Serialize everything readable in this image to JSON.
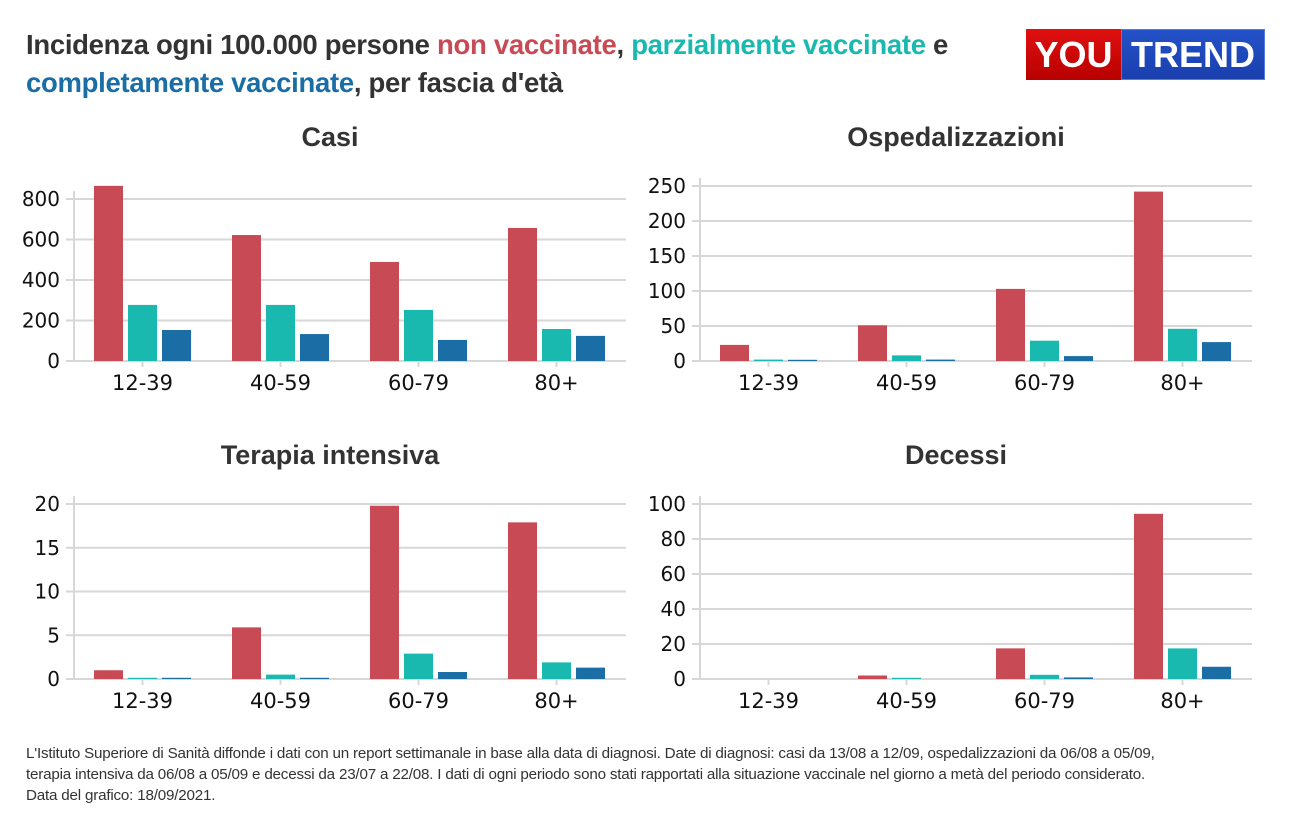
{
  "header": {
    "title_part1": "Incidenza ogni 100.000 persone ",
    "title_non": "non vaccinate",
    "title_sep1": ", ",
    "title_parz": "parzialmente vaccinate",
    "title_sep2": " e ",
    "title_comp": "completamente vaccinate",
    "title_part2": ", per fascia d'età",
    "logo_you": "YOU",
    "logo_trend": "TREND"
  },
  "colors": {
    "non_vaccinate": "#c84a55",
    "parzialmente_vaccinate": "#1ab9af",
    "completamente_vaccinate": "#1a6ea5",
    "grid": "#d7d7d7"
  },
  "chart_data": [
    {
      "type": "bar",
      "title": "Casi",
      "categories": [
        "12-39",
        "40-59",
        "60-79",
        "80+"
      ],
      "series": [
        {
          "name": "non vaccinate",
          "values": [
            865,
            622,
            489,
            657
          ]
        },
        {
          "name": "parzialmente vaccinate",
          "values": [
            277,
            277,
            252,
            158
          ]
        },
        {
          "name": "completamente vaccinate",
          "values": [
            153,
            133,
            104,
            124
          ]
        }
      ],
      "yticks": [
        0,
        200,
        400,
        600,
        800
      ],
      "ylim": [
        0,
        900
      ],
      "grid": true,
      "xlabel": "",
      "ylabel": ""
    },
    {
      "type": "bar",
      "title": "Ospedalizzazioni",
      "categories": [
        "12-39",
        "40-59",
        "60-79",
        "80+"
      ],
      "series": [
        {
          "name": "non vaccinate",
          "values": [
            23,
            51,
            103,
            242
          ]
        },
        {
          "name": "parzialmente vaccinate",
          "values": [
            2,
            8,
            29,
            46
          ]
        },
        {
          "name": "completamente vaccinate",
          "values": [
            1,
            2,
            7,
            27
          ]
        }
      ],
      "yticks": [
        0,
        50,
        100,
        150,
        200,
        250
      ],
      "ylim": [
        0,
        260
      ],
      "grid": true,
      "xlabel": "",
      "ylabel": ""
    },
    {
      "type": "bar",
      "title": "Terapia intensiva",
      "categories": [
        "12-39",
        "40-59",
        "60-79",
        "80+"
      ],
      "series": [
        {
          "name": "non vaccinate",
          "values": [
            1.0,
            5.9,
            19.8,
            17.9
          ]
        },
        {
          "name": "parzialmente vaccinate",
          "values": [
            0.1,
            0.5,
            2.9,
            1.9
          ]
        },
        {
          "name": "completamente vaccinate",
          "values": [
            0.1,
            0.1,
            0.8,
            1.3
          ]
        }
      ],
      "yticks": [
        0,
        5,
        10,
        15,
        20
      ],
      "ylim": [
        0,
        20
      ],
      "grid": true,
      "xlabel": "",
      "ylabel": ""
    },
    {
      "type": "bar",
      "title": "Decessi",
      "categories": [
        "12-39",
        "40-59",
        "60-79",
        "80+"
      ],
      "series": [
        {
          "name": "non vaccinate",
          "values": [
            0,
            2.0,
            17.5,
            94.4
          ]
        },
        {
          "name": "parzialmente vaccinate",
          "values": [
            0,
            0.2,
            2.4,
            17.5
          ]
        },
        {
          "name": "completamente vaccinate",
          "values": [
            0,
            0,
            0.9,
            7.0
          ]
        }
      ],
      "yticks": [
        0,
        20,
        40,
        60,
        80,
        100
      ],
      "ylim": [
        0,
        100
      ],
      "grid": true,
      "xlabel": "",
      "ylabel": ""
    }
  ],
  "footer": {
    "note_line1": "L'Istituto Superiore di Sanità diffonde i dati con un report settimanale in base alla data di diagnosi. Date di diagnosi: casi da 13/08 a 12/09, ospedalizzazioni da 06/08 a 05/09,",
    "note_line2": "terapia intensiva da 06/08 a 05/09 e decessi da 23/07 a 22/08. I dati di ogni periodo sono stati rapportati alla situazione vaccinale nel giorno a metà del periodo considerato.",
    "note_line3": "Data del grafico: 18/09/2021."
  }
}
